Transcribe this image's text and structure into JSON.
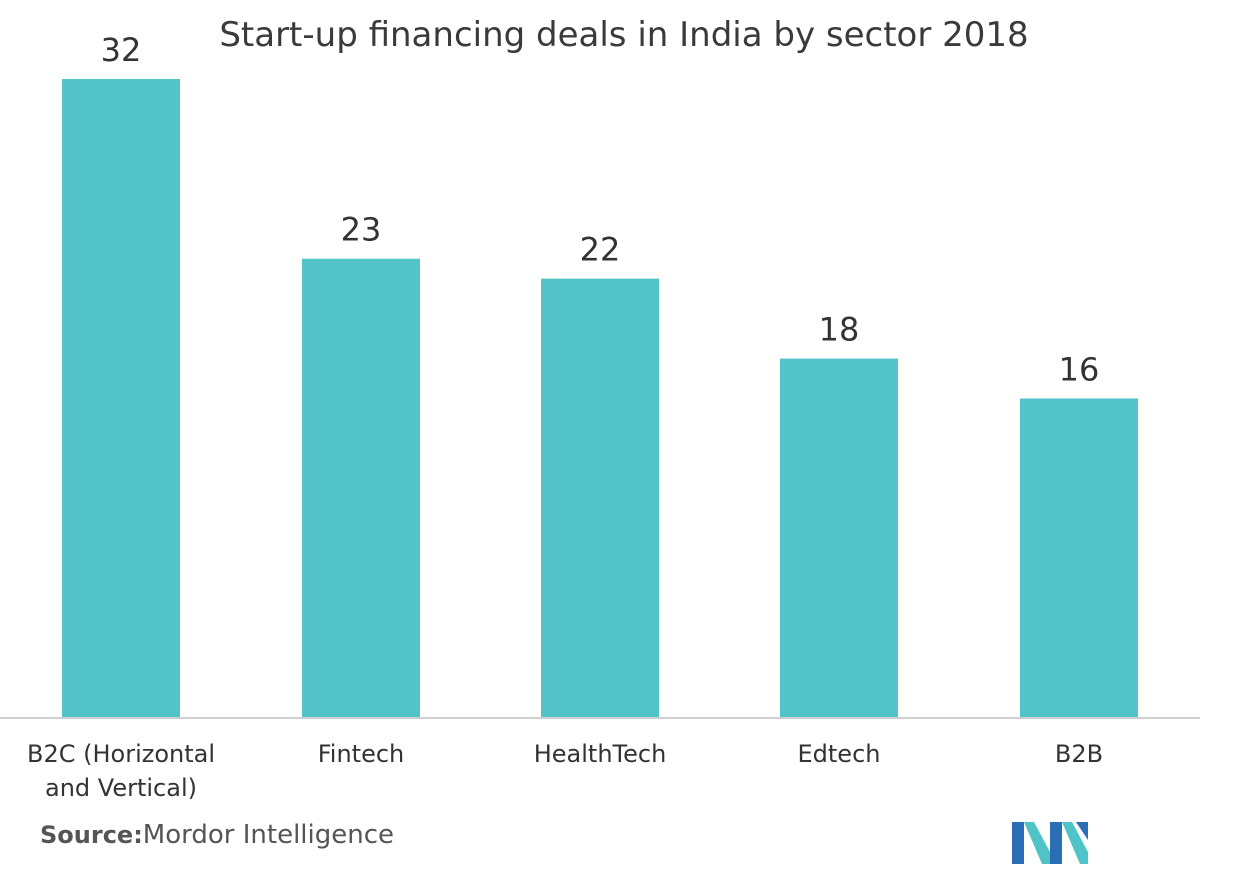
{
  "chart_data": {
    "type": "bar",
    "title": "Start-up financing deals in India by sector 2018",
    "categories": [
      [
        "B2C (Horizontal",
        "and Vertical)"
      ],
      [
        "Fintech"
      ],
      [
        "HealthTech"
      ],
      [
        "Edtech"
      ],
      [
        "B2B"
      ]
    ],
    "values": [
      32,
      23,
      22,
      18,
      16
    ],
    "ylim": [
      0,
      32
    ],
    "grid": false,
    "bar_color": "#52C4C8",
    "axis_color": "#d0d0d0"
  },
  "footer": {
    "source_key": "Source:",
    "source_value": "Mordor Intelligence"
  },
  "logo": {
    "icon": "mordor-intelligence-logo-icon",
    "colors": [
      "#2a6fb5",
      "#4fc3c8"
    ]
  }
}
